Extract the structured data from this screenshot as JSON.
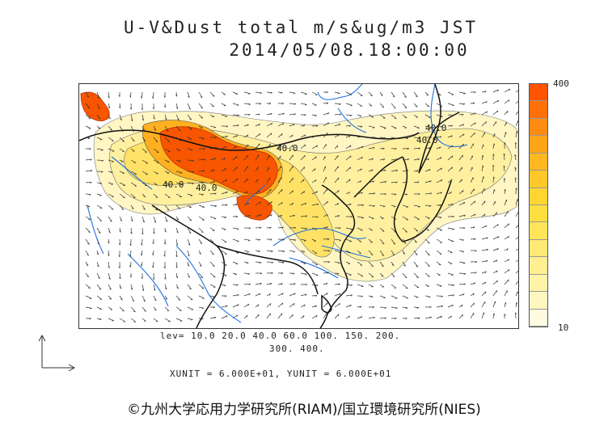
{
  "title": "U-V&Dust total m/s&ug/m3 JST",
  "datetime": "2014/05/08.18:00:00",
  "colorbar": {
    "max_label": "400",
    "min_label": "10",
    "colors": [
      "#fffbe0",
      "#fff7c0",
      "#fff3a8",
      "#ffef90",
      "#ffea75",
      "#ffe55a",
      "#ffdf40",
      "#ffd630",
      "#ffc828",
      "#ffb820",
      "#ffa418",
      "#ff8c10",
      "#ff7008",
      "#ff5500"
    ]
  },
  "levels_line1": "lev= 10.0 20.0 40.0 60.0 100. 150. 200.",
  "levels_line2": "300. 400.",
  "units_line": "XUNIT = 6.000E+01, YUNIT = 6.000E+01",
  "copyright": "©九州大学応用力学研究所(RIAM)/国立環境研究所(NIES)",
  "contour_labels": [
    "40.0",
    "40.0",
    "40.0",
    "40.0",
    "40.0"
  ]
}
